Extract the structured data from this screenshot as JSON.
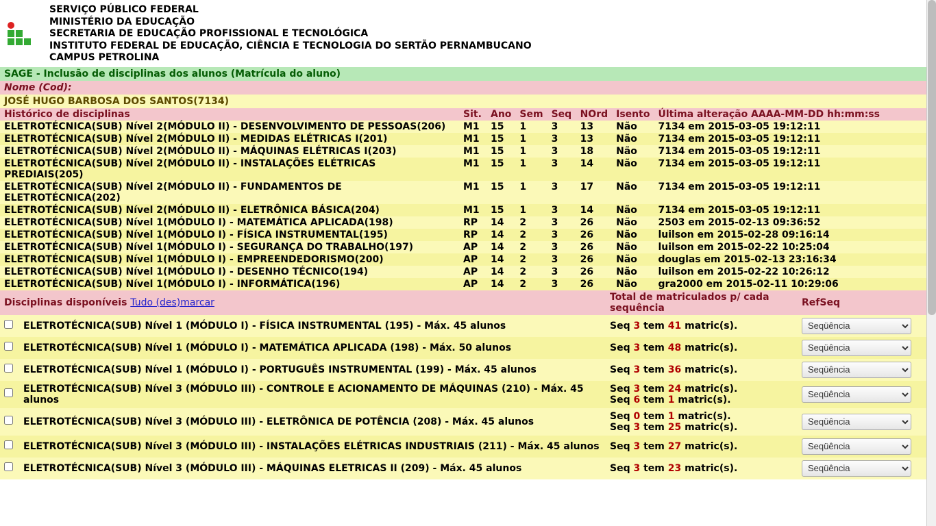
{
  "header": {
    "line1": "SERVIÇO PÚBLICO FEDERAL",
    "line2": "MINISTÉRIO DA EDUCAÇÃO",
    "line3": "SECRETARIA DE EDUCAÇÃO PROFISSIONAL E TECNOLÓGICA",
    "line4": "INSTITUTO FEDERAL DE EDUCAÇÃO, CIÊNCIA E TECNOLOGIA DO SERTÃO PERNAMBUCANO",
    "line5": "CAMPUS PETROLINA"
  },
  "title_bar": "SAGE - Inclusão de disciplinas dos alunos (Matrícula do aluno)",
  "nome_label": "Nome (Cod):",
  "student": "JOSÉ HUGO BARBOSA DOS SANTOS(7134)",
  "history_header": {
    "name": "Histórico de disciplinas",
    "sit": "Sit.",
    "ano": "Ano",
    "sem": "Sem",
    "seq": "Seq",
    "nord": "NOrd",
    "isento": "Isento",
    "ult": "Última alteração AAAA-MM-DD hh:mm:ss"
  },
  "history": [
    {
      "name": "ELETROTÉCNICA(SUB) Nível 2(MÓDULO II) - DESENVOLVIMENTO DE PESSOAS(206)",
      "sit": "M1",
      "ano": "15",
      "sem": "1",
      "seq": "3",
      "nord": "13",
      "isento": "Não",
      "ult": "7134 em 2015-03-05 19:12:11"
    },
    {
      "name": "ELETROTÉCNICA(SUB) Nível 2(MÓDULO II) - MEDIDAS ELÉTRICAS I(201)",
      "sit": "M1",
      "ano": "15",
      "sem": "1",
      "seq": "3",
      "nord": "13",
      "isento": "Não",
      "ult": "7134 em 2015-03-05 19:12:11"
    },
    {
      "name": "ELETROTÉCNICA(SUB) Nível 2(MÓDULO II) - MÁQUINAS ELÉTRICAS I(203)",
      "sit": "M1",
      "ano": "15",
      "sem": "1",
      "seq": "3",
      "nord": "18",
      "isento": "Não",
      "ult": "7134 em 2015-03-05 19:12:11"
    },
    {
      "name": "ELETROTÉCNICA(SUB) Nível 2(MÓDULO II) - INSTALAÇÕES ELÉTRICAS PREDIAIS(205)",
      "sit": "M1",
      "ano": "15",
      "sem": "1",
      "seq": "3",
      "nord": "14",
      "isento": "Não",
      "ult": "7134 em 2015-03-05 19:12:11"
    },
    {
      "name": "ELETROTÉCNICA(SUB) Nível 2(MÓDULO II) - FUNDAMENTOS DE ELETROTÉCNICA(202)",
      "sit": "M1",
      "ano": "15",
      "sem": "1",
      "seq": "3",
      "nord": "17",
      "isento": "Não",
      "ult": "7134 em 2015-03-05 19:12:11"
    },
    {
      "name": "ELETROTÉCNICA(SUB) Nível 2(MÓDULO II) - ELETRÔNICA BÁSICA(204)",
      "sit": "M1",
      "ano": "15",
      "sem": "1",
      "seq": "3",
      "nord": "14",
      "isento": "Não",
      "ult": "7134 em 2015-03-05 19:12:11"
    },
    {
      "name": "ELETROTÉCNICA(SUB) Nível 1(MÓDULO I) - MATEMÁTICA APLICADA(198)",
      "sit": "RP",
      "ano": "14",
      "sem": "2",
      "seq": "3",
      "nord": "26",
      "isento": "Não",
      "ult": "2503 em 2015-02-13 09:36:52"
    },
    {
      "name": "ELETROTÉCNICA(SUB) Nível 1(MÓDULO I) - FÍSICA INSTRUMENTAL(195)",
      "sit": "RP",
      "ano": "14",
      "sem": "2",
      "seq": "3",
      "nord": "26",
      "isento": "Não",
      "ult": "luilson em 2015-02-28 09:16:14"
    },
    {
      "name": "ELETROTÉCNICA(SUB) Nível 1(MÓDULO I) - SEGURANÇA DO TRABALHO(197)",
      "sit": "AP",
      "ano": "14",
      "sem": "2",
      "seq": "3",
      "nord": "26",
      "isento": "Não",
      "ult": "luilson em 2015-02-22 10:25:04"
    },
    {
      "name": "ELETROTÉCNICA(SUB) Nível 1(MÓDULO I) - EMPREENDEDORISMO(200)",
      "sit": "AP",
      "ano": "14",
      "sem": "2",
      "seq": "3",
      "nord": "26",
      "isento": "Não",
      "ult": "douglas em 2015-02-13 23:16:34"
    },
    {
      "name": "ELETROTÉCNICA(SUB) Nível 1(MÓDULO I) - DESENHO TÉCNICO(194)",
      "sit": "AP",
      "ano": "14",
      "sem": "2",
      "seq": "3",
      "nord": "26",
      "isento": "Não",
      "ult": "luilson em 2015-02-22 10:26:12"
    },
    {
      "name": "ELETROTÉCNICA(SUB) Nível 1(MÓDULO I) - INFORMÁTICA(196)",
      "sit": "AP",
      "ano": "14",
      "sem": "2",
      "seq": "3",
      "nord": "26",
      "isento": "Não",
      "ult": "gra2000 em 2015-02-11 10:29:06"
    }
  ],
  "avail_header": {
    "col1": "Disciplinas disponíveis ",
    "toggle": "Tudo (des)marcar",
    "col2": "Total de matriculados p/ cada sequência",
    "col3": "RefSeq"
  },
  "select_label": "Seqüência",
  "available": [
    {
      "label": "ELETROTÉCNICA(SUB) Nível 1 (MÓDULO I) - FÍSICA INSTRUMENTAL (195) - Máx. 45 alunos",
      "seqs": [
        {
          "s": "3",
          "m": "41"
        }
      ]
    },
    {
      "label": "ELETROTÉCNICA(SUB) Nível 1 (MÓDULO I) - MATEMÁTICA APLICADA (198) - Máx. 50 alunos",
      "seqs": [
        {
          "s": "3",
          "m": "48"
        }
      ]
    },
    {
      "label": "ELETROTÉCNICA(SUB) Nível 1 (MÓDULO I) - PORTUGUÊS INSTRUMENTAL (199) - Máx. 45 alunos",
      "seqs": [
        {
          "s": "3",
          "m": "36"
        }
      ]
    },
    {
      "label": "ELETROTÉCNICA(SUB) Nível 3 (MÓDULO III) - CONTROLE E ACIONAMENTO DE MÁQUINAS (210) - Máx. 45 alunos",
      "seqs": [
        {
          "s": "3",
          "m": "24"
        },
        {
          "s": "6",
          "m": "1"
        }
      ]
    },
    {
      "label": "ELETROTÉCNICA(SUB) Nível 3 (MÓDULO III) - ELETRÔNICA DE POTÊNCIA (208) - Máx. 45 alunos",
      "seqs": [
        {
          "s": "0",
          "m": "1"
        },
        {
          "s": "3",
          "m": "25"
        }
      ]
    },
    {
      "label": "ELETROTÉCNICA(SUB) Nível 3 (MÓDULO III) - INSTALAÇÕES ELÉTRICAS INDUSTRIAIS (211) - Máx. 45 alunos",
      "seqs": [
        {
          "s": "3",
          "m": "27"
        }
      ]
    },
    {
      "label": "ELETROTÉCNICA(SUB) Nível 3 (MÓDULO III) - MÁQUINAS ELETRICAS II (209) - Máx. 45 alunos",
      "seqs": [
        {
          "s": "3",
          "m": "23"
        }
      ]
    }
  ],
  "colors": {
    "green_bg": "#b7e8b7",
    "pink_bg": "#f3c6cc",
    "yellow_bg": "#fbf9b8",
    "red_text": "#b00000"
  }
}
